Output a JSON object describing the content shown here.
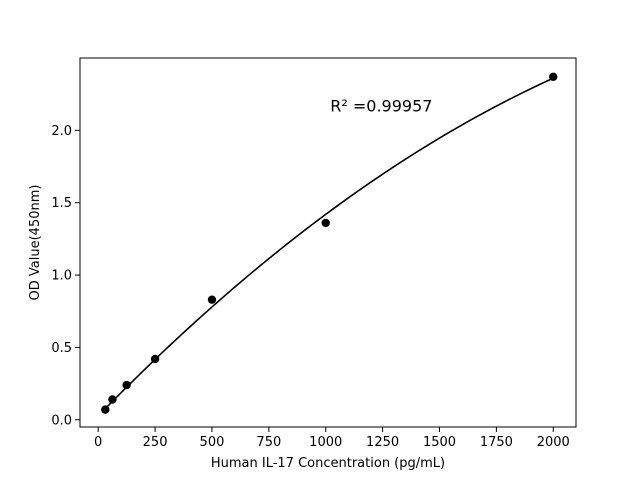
{
  "chart_data": {
    "type": "scatter",
    "xlabel": "Human IL-17 Concentration (pg/mL)",
    "ylabel": "OD Value(450nm)",
    "xlim": [
      -80,
      2100
    ],
    "ylim": [
      -0.05,
      2.5
    ],
    "xticks": [
      0,
      250,
      500,
      750,
      1000,
      1250,
      1500,
      1750,
      2000
    ],
    "yticks": [
      0.0,
      0.5,
      1.0,
      1.5,
      2.0
    ],
    "xtick_labels": [
      "0",
      "250",
      "500",
      "750",
      "1000",
      "1250",
      "1500",
      "1750",
      "2000"
    ],
    "ytick_labels": [
      "0.0",
      "0.5",
      "1.0",
      "1.5",
      "2.0"
    ],
    "annotation": "R² =0.99957",
    "grid": false,
    "points": {
      "x": [
        31.25,
        62.5,
        125,
        250,
        500,
        1000,
        2000
      ],
      "y": [
        0.07,
        0.14,
        0.24,
        0.42,
        0.83,
        1.36,
        2.37
      ]
    },
    "fit_curve": {
      "type": "polynomial-2",
      "coefficients": [
        0.0265,
        0.001619,
        -2.26e-07
      ],
      "x_range": [
        31.25,
        2000
      ]
    },
    "colors": {
      "marker": "#000000",
      "line": "#000000"
    }
  }
}
